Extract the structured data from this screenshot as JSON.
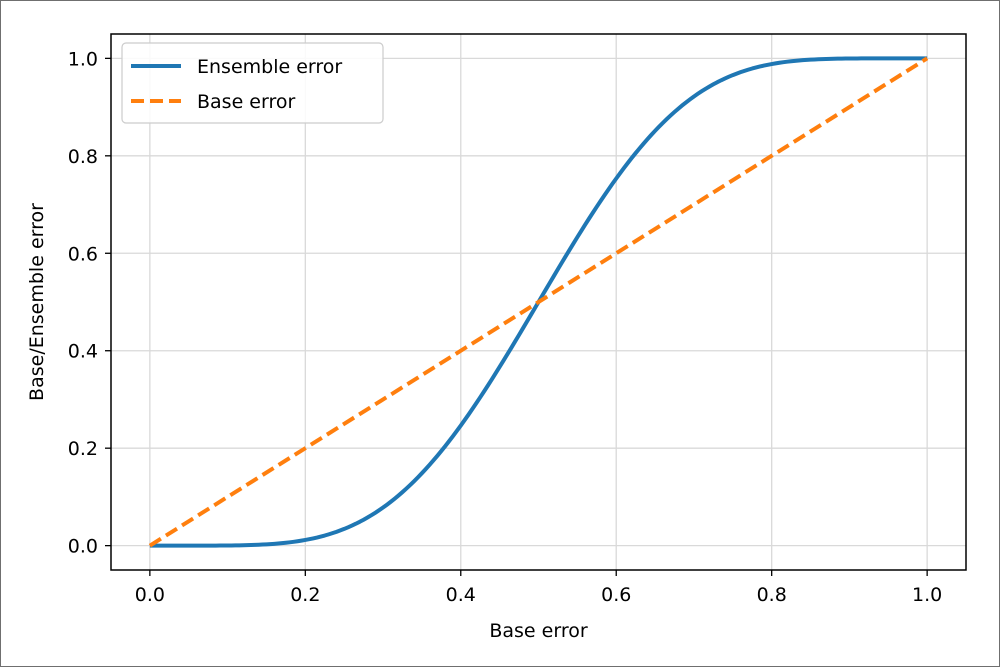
{
  "chart_data": {
    "type": "line",
    "xlabel": "Base error",
    "ylabel": "Base/Ensemble error",
    "xlim": [
      -0.05,
      1.05
    ],
    "ylim": [
      -0.05,
      1.05
    ],
    "xticks": [
      0.0,
      0.2,
      0.4,
      0.6,
      0.8,
      1.0
    ],
    "yticks": [
      0.0,
      0.2,
      0.4,
      0.6,
      0.8,
      1.0
    ],
    "xtick_labels": [
      "0.0",
      "0.2",
      "0.4",
      "0.6",
      "0.8",
      "1.0"
    ],
    "ytick_labels": [
      "0.0",
      "0.2",
      "0.4",
      "0.6",
      "0.8",
      "1.0"
    ],
    "grid": true,
    "legend_position": "top-left",
    "series": [
      {
        "name": "Ensemble error",
        "color": "#1f77b4",
        "style": "solid",
        "x": [
          0.0,
          0.05,
          0.1,
          0.15,
          0.2,
          0.25,
          0.3,
          0.35,
          0.4,
          0.45,
          0.5,
          0.55,
          0.6,
          0.65,
          0.7,
          0.75,
          0.8,
          0.85,
          0.9,
          0.95,
          1.0
        ],
        "y": [
          0.0,
          0.0,
          0.0003,
          0.0028,
          0.0117,
          0.0343,
          0.0782,
          0.1487,
          0.2465,
          0.3669,
          0.5,
          0.6331,
          0.7535,
          0.8513,
          0.9218,
          0.9657,
          0.9883,
          0.9972,
          0.9997,
          1.0,
          1.0
        ]
      },
      {
        "name": "Base error",
        "color": "#ff7f0e",
        "style": "dashed",
        "x": [
          0.0,
          1.0
        ],
        "y": [
          0.0,
          1.0
        ]
      }
    ]
  }
}
